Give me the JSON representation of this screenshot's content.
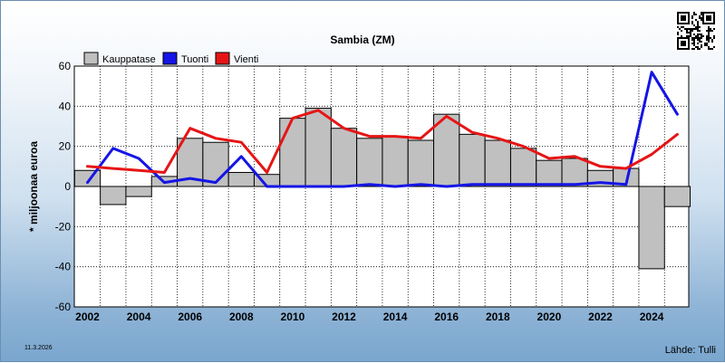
{
  "chart_data": {
    "type": "bar",
    "title": "Sambia (ZM)",
    "ylabel": "* miljoonaa euroa",
    "ylim": [
      -60,
      60
    ],
    "yticks": [
      -60,
      -40,
      -20,
      0,
      20,
      40,
      60
    ],
    "x": [
      2002,
      2003,
      2004,
      2005,
      2006,
      2007,
      2008,
      2009,
      2010,
      2011,
      2012,
      2013,
      2014,
      2015,
      2016,
      2017,
      2018,
      2019,
      2020,
      2021,
      2022,
      2023,
      2024,
      2025
    ],
    "xticks": [
      "2002",
      "2004",
      "2006",
      "2008",
      "2010",
      "2012",
      "2014",
      "2016",
      "2018",
      "2020",
      "2022",
      "2024"
    ],
    "grid": true,
    "legend_position": "top-left",
    "series": [
      {
        "name": "Kauppatase",
        "kind": "bar",
        "color": "#c0c0c0",
        "values": [
          8,
          -9,
          -5,
          5,
          24,
          22,
          7,
          6,
          34,
          39,
          29,
          24,
          25,
          23,
          36,
          26,
          23,
          19,
          13,
          14,
          8,
          9,
          -41,
          -10
        ]
      },
      {
        "name": "Tuonti",
        "kind": "line",
        "color": "#1515e6",
        "values": [
          2,
          19,
          14,
          2,
          4,
          2,
          15,
          0,
          0,
          0,
          0,
          1,
          0,
          1,
          0,
          1,
          1,
          1,
          1,
          1,
          2,
          1,
          57,
          36
        ]
      },
      {
        "name": "Vienti",
        "kind": "line",
        "color": "#e61515",
        "values": [
          10,
          9,
          8,
          7,
          29,
          24,
          22,
          7,
          34,
          38,
          29,
          25,
          25,
          24,
          35,
          27,
          24,
          20,
          14,
          15,
          10,
          9,
          16,
          26
        ]
      }
    ]
  },
  "footer": {
    "date": "11.3.2026",
    "source": "Lähde: Tulli"
  }
}
